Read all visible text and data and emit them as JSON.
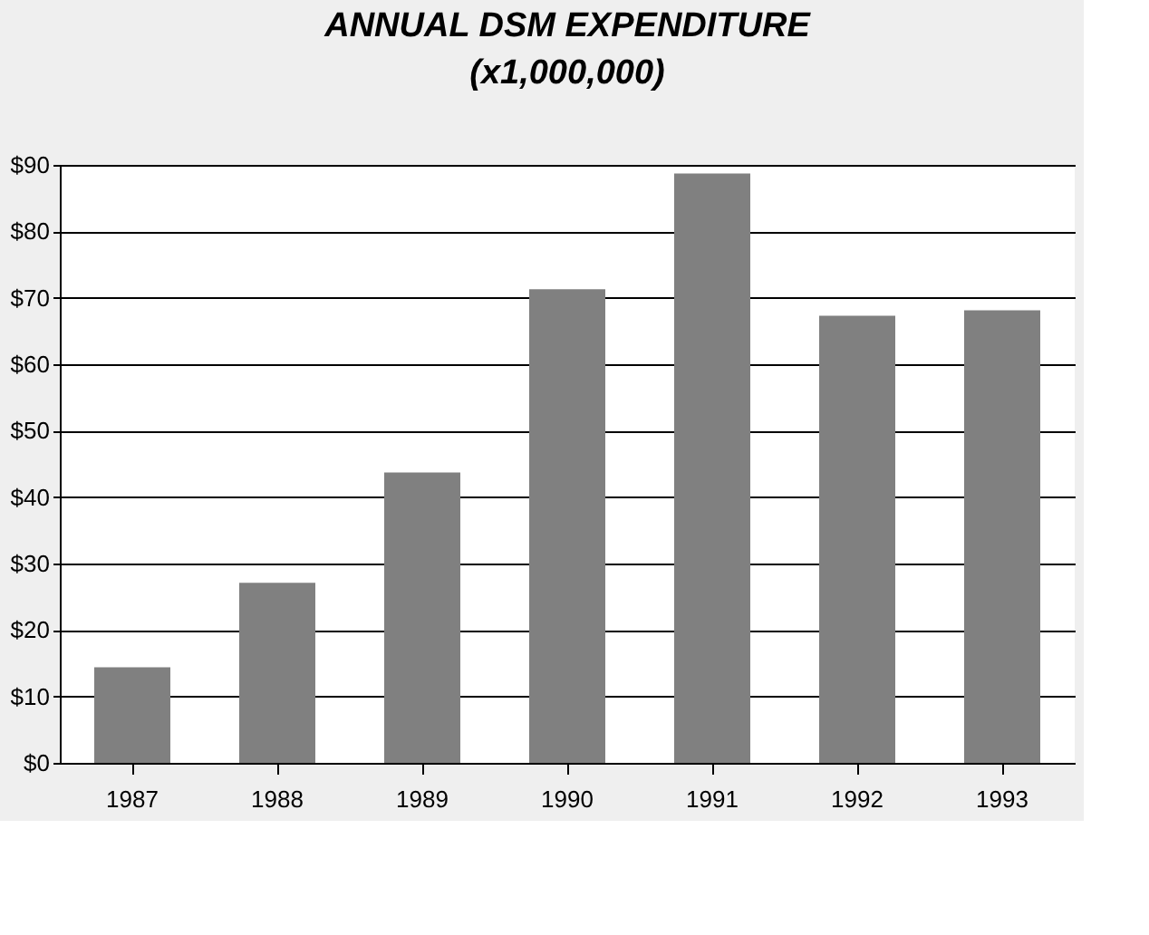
{
  "chart_data": {
    "type": "bar",
    "title": [
      "ANNUAL DSM EXPENDITURE",
      "(x1,000,000)"
    ],
    "categories": [
      "1987",
      "1988",
      "1989",
      "1990",
      "1991",
      "1992",
      "1993"
    ],
    "values": [
      14.4,
      27.1,
      43.7,
      71.3,
      88.7,
      67.3,
      68.1
    ],
    "color": "#808080",
    "ylim": [
      0,
      90
    ],
    "yticks": [
      {
        "value": 0,
        "label": "$0"
      },
      {
        "value": 10,
        "label": "$10"
      },
      {
        "value": 20,
        "label": "$20"
      },
      {
        "value": 30,
        "label": "$30"
      },
      {
        "value": 40,
        "label": "$40"
      },
      {
        "value": 50,
        "label": "$50"
      },
      {
        "value": 60,
        "label": "$60"
      },
      {
        "value": 70,
        "label": "$70"
      },
      {
        "value": 80,
        "label": "$80"
      },
      {
        "value": 90,
        "label": "$90"
      }
    ],
    "grid": "y"
  }
}
